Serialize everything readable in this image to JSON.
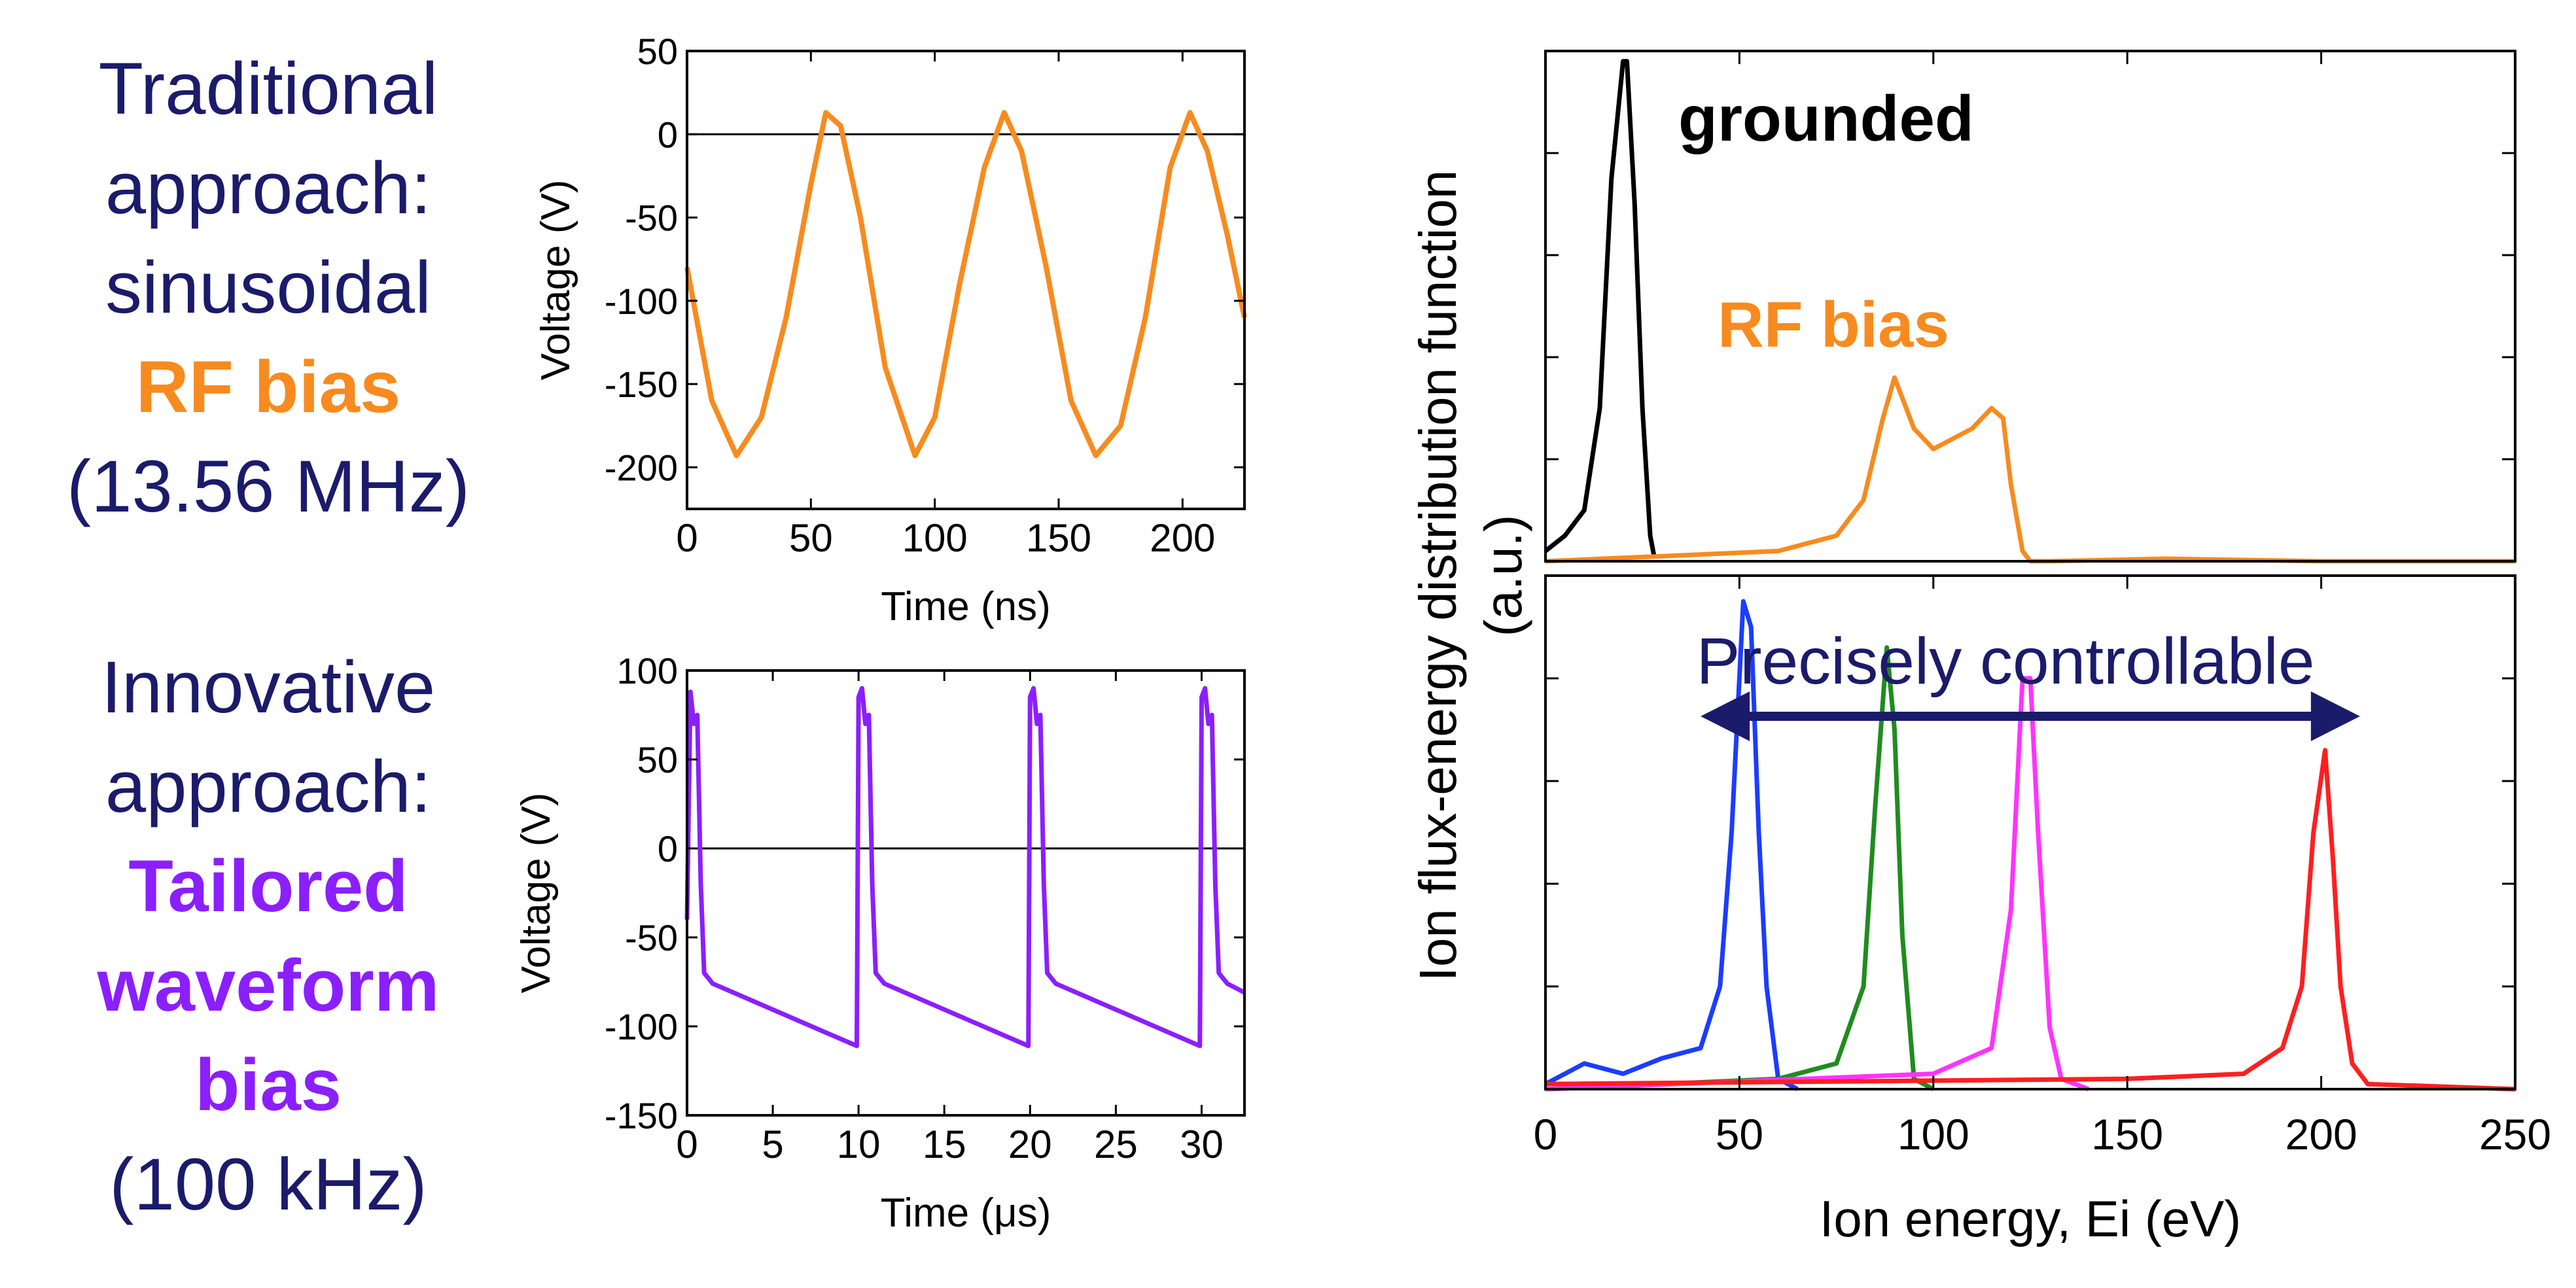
{
  "left_panel": {
    "top_lines": [
      "Traditional",
      "approach:",
      "sinusoidal"
    ],
    "top_highlight": "RF bias",
    "top_freq": "(13.56 MHz)",
    "bottom_lines": [
      "Innovative",
      "approach:"
    ],
    "bottom_highlight": [
      "Tailored",
      "waveform",
      "bias"
    ],
    "bottom_freq": "(100 kHz)"
  },
  "colors": {
    "navy": "#1b1b6b",
    "orange": "#f78b1f",
    "purple": "#8b1fff",
    "black": "#000000",
    "blue": "#1c3cff",
    "green": "#1f8c1f",
    "magenta": "#ff33ff",
    "red": "#ff1f1f"
  },
  "chart_data": [
    {
      "id": "rf-voltage",
      "type": "line",
      "xlabel": "Time (ns)",
      "ylabel": "Voltage (V)",
      "xlim": [
        0,
        225
      ],
      "ylim": [
        -225,
        50
      ],
      "xticks": [
        0,
        50,
        100,
        150,
        200
      ],
      "yticks": [
        50,
        0,
        -50,
        -100,
        -150,
        -200
      ],
      "reference_line_y": 0,
      "series": [
        {
          "x": [
            0,
            10,
            20,
            30,
            40,
            50,
            56,
            62,
            70,
            80,
            92,
            100,
            110,
            120,
            128,
            135,
            145,
            155,
            165,
            175,
            185,
            195,
            203,
            210,
            218,
            225
          ],
          "y": [
            -80,
            -160,
            -193,
            -170,
            -110,
            -30,
            13,
            5,
            -50,
            -140,
            -193,
            -170,
            -90,
            -20,
            13,
            -10,
            -80,
            -160,
            -193,
            -175,
            -110,
            -20,
            13,
            -10,
            -60,
            -110
          ]
        }
      ]
    },
    {
      "id": "tailored-voltage",
      "type": "line",
      "xlabel": "Time (μs)",
      "ylabel": "Voltage (V)",
      "xlim": [
        0,
        32.5
      ],
      "ylim": [
        -150,
        100
      ],
      "xticks": [
        0,
        5,
        10,
        15,
        20,
        25,
        30
      ],
      "yticks": [
        100,
        50,
        0,
        -50,
        -100,
        -150
      ],
      "reference_line_y": 0,
      "series": [
        {
          "x": [
            0,
            0.2,
            0.4,
            0.6,
            0.8,
            1.0,
            1.5,
            9.9,
            10.0,
            10.2,
            10.4,
            10.6,
            10.8,
            11.0,
            11.5,
            19.9,
            20.0,
            20.2,
            20.4,
            20.6,
            20.8,
            21.0,
            21.5,
            29.9,
            30.0,
            30.2,
            30.4,
            30.6,
            30.8,
            31.0,
            31.5,
            32.5
          ],
          "y": [
            -40,
            88,
            70,
            75,
            -20,
            -70,
            -76,
            -111,
            85,
            90,
            70,
            75,
            -20,
            -70,
            -76,
            -111,
            85,
            90,
            70,
            75,
            -20,
            -70,
            -76,
            -111,
            85,
            90,
            70,
            75,
            -20,
            -70,
            -76,
            -81
          ]
        }
      ]
    },
    {
      "id": "iedf-rf",
      "type": "line",
      "xlim": [
        0,
        250
      ],
      "ylim": [
        0,
        1
      ],
      "annotations": [
        "grounded",
        "RF bias"
      ],
      "series": [
        {
          "name": "grounded",
          "x": [
            0,
            5,
            10,
            14,
            17,
            20,
            21,
            23,
            25,
            27,
            28
          ],
          "y": [
            0.02,
            0.05,
            0.1,
            0.3,
            0.75,
            0.98,
            0.98,
            0.7,
            0.3,
            0.05,
            0.01
          ]
        },
        {
          "name": "RF bias",
          "x": [
            0,
            30,
            60,
            75,
            82,
            87,
            90,
            95,
            100,
            105,
            110,
            115,
            118,
            120,
            123,
            125,
            130,
            160,
            200,
            250
          ],
          "y": [
            0.0,
            0.01,
            0.02,
            0.05,
            0.12,
            0.28,
            0.36,
            0.26,
            0.22,
            0.24,
            0.26,
            0.3,
            0.28,
            0.15,
            0.02,
            0.0,
            0.0,
            0.005,
            0.0,
            0.0
          ]
        }
      ]
    },
    {
      "id": "iedf-tailored",
      "type": "line",
      "xlabel": "Ion energy, Ei (eV)",
      "ylabel": "Ion flux-energy distribution function (a.u.)",
      "xlim": [
        0,
        250
      ],
      "xticks": [
        0,
        50,
        100,
        150,
        200,
        250
      ],
      "ylim": [
        0,
        1
      ],
      "annotations": [
        "Precisely controllable"
      ],
      "arrow_range": [
        40,
        210
      ],
      "series": [
        {
          "name": "blue",
          "x": [
            0,
            10,
            20,
            30,
            40,
            45,
            48,
            51,
            53,
            55,
            57,
            60,
            65
          ],
          "y": [
            0.01,
            0.05,
            0.03,
            0.06,
            0.08,
            0.2,
            0.5,
            0.95,
            0.9,
            0.5,
            0.2,
            0.02,
            0.0
          ]
        },
        {
          "name": "green",
          "x": [
            0,
            60,
            75,
            82,
            85,
            88,
            90,
            92,
            95,
            100
          ],
          "y": [
            0.0,
            0.02,
            0.05,
            0.2,
            0.55,
            0.86,
            0.7,
            0.3,
            0.02,
            0.0
          ]
        },
        {
          "name": "magenta",
          "x": [
            0,
            100,
            115,
            120,
            123,
            125,
            127,
            130,
            133,
            140
          ],
          "y": [
            0.0,
            0.03,
            0.08,
            0.35,
            0.8,
            0.8,
            0.5,
            0.12,
            0.02,
            0.0
          ]
        },
        {
          "name": "red",
          "x": [
            0,
            150,
            180,
            190,
            195,
            198,
            201,
            203,
            205,
            208,
            212,
            250
          ],
          "y": [
            0.01,
            0.02,
            0.03,
            0.08,
            0.2,
            0.5,
            0.66,
            0.45,
            0.2,
            0.05,
            0.01,
            0.0
          ]
        }
      ]
    }
  ]
}
